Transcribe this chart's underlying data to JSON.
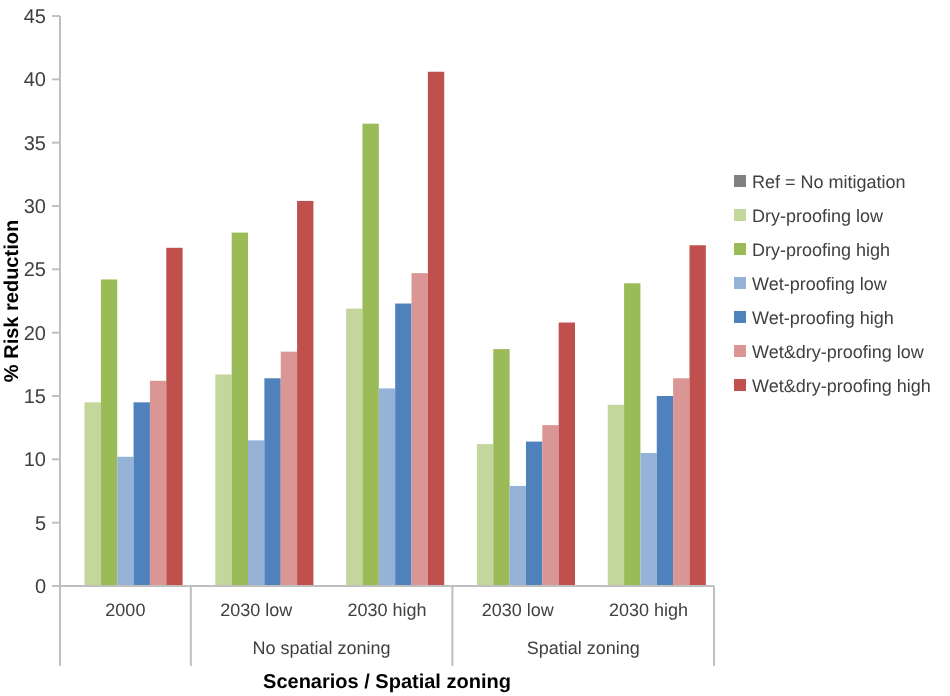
{
  "chart_data": {
    "type": "bar",
    "xlabel": "Scenarios / Spatial zoning",
    "ylabel": "% Risk reduction",
    "categories": [
      "2000",
      "2030 low",
      "2030 high",
      "2030 low",
      "2030 high"
    ],
    "annotations": [
      "No spatial zoning",
      "Spatial zoning"
    ],
    "series": [
      {
        "name": "Ref = No mitigation",
        "color": "#808080",
        "values": [
          0,
          0,
          0,
          0,
          0
        ]
      },
      {
        "name": "Dry-proofing low",
        "color": "#c3d69b",
        "values": [
          14.5,
          16.7,
          21.9,
          11.2,
          14.3
        ]
      },
      {
        "name": "Dry-proofing high",
        "color": "#9bbb59",
        "values": [
          24.2,
          27.9,
          36.5,
          18.7,
          23.9
        ]
      },
      {
        "name": "Wet-proofing low",
        "color": "#95b3d7",
        "values": [
          10.2,
          11.5,
          15.6,
          7.9,
          10.5
        ]
      },
      {
        "name": "Wet-proofing high",
        "color": "#4f81bd",
        "values": [
          14.5,
          16.4,
          22.3,
          11.4,
          15.0
        ]
      },
      {
        "name": "Wet&dry-proofing low",
        "color": "#d99694",
        "values": [
          16.2,
          18.5,
          24.7,
          12.7,
          16.4
        ]
      },
      {
        "name": "Wet&dry-proofing high",
        "color": "#c0504d",
        "values": [
          26.7,
          30.4,
          40.6,
          20.8,
          26.9
        ]
      }
    ],
    "ylim": [
      0,
      45
    ],
    "yticks": [
      0,
      5,
      10,
      15,
      20,
      25,
      30,
      35,
      40,
      45
    ],
    "grid": false,
    "legend": "right"
  }
}
